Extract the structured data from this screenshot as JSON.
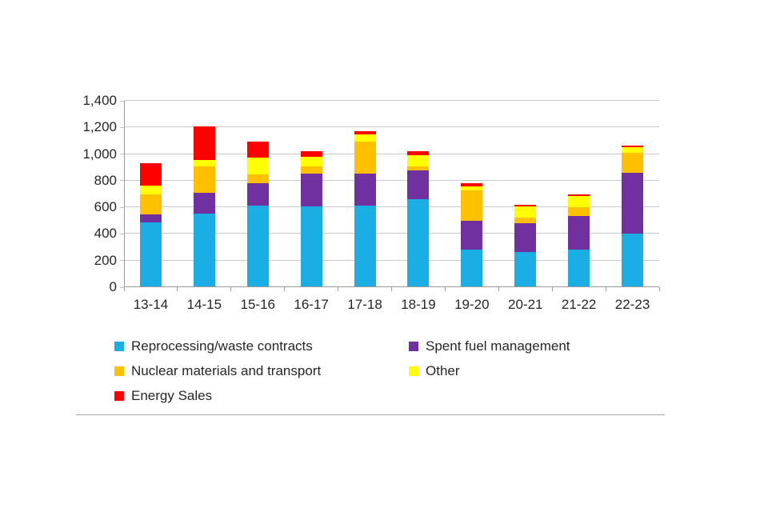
{
  "chart_data": {
    "type": "bar",
    "stacked": true,
    "title": "",
    "xlabel": "",
    "ylabel": "",
    "categories": [
      "13-14",
      "14-15",
      "15-16",
      "16-17",
      "17-18",
      "18-19",
      "19-20",
      "20-21",
      "21-22",
      "22-23"
    ],
    "series": [
      {
        "name": "Reprocessing/waste contracts",
        "color": "#1BAEE4",
        "values": [
          485,
          550,
          610,
          605,
          610,
          660,
          280,
          265,
          285,
          400
        ]
      },
      {
        "name": "Spent fuel management",
        "color": "#7030A0",
        "values": [
          60,
          160,
          170,
          250,
          245,
          215,
          220,
          215,
          250,
          460
        ]
      },
      {
        "name": "Nuclear materials and transport",
        "color": "#FFC000",
        "values": [
          155,
          200,
          65,
          50,
          240,
          35,
          225,
          45,
          65,
          150
        ]
      },
      {
        "name": "Other",
        "color": "#FFFF00",
        "values": [
          65,
          45,
          130,
          75,
          55,
          80,
          30,
          80,
          85,
          40
        ]
      },
      {
        "name": "Energy Sales",
        "color": "#FF0000",
        "values": [
          165,
          255,
          120,
          40,
          20,
          30,
          25,
          15,
          15,
          15
        ]
      }
    ],
    "totals": [
      930,
      1210,
      1095,
      1020,
      1170,
      1020,
      780,
      620,
      700,
      1065
    ],
    "ylim": [
      0,
      1400
    ],
    "yticks": [
      "0",
      "200",
      "400",
      "600",
      "800",
      "1,000",
      "1,200",
      "1,400"
    ],
    "grid": true,
    "legend_position": "bottom",
    "legend_columns": 2
  },
  "style": {
    "gridline_color": "#c9c9c9",
    "axis_color": "#9b9b9b",
    "text_color": "#262626",
    "background": "#ffffff"
  }
}
